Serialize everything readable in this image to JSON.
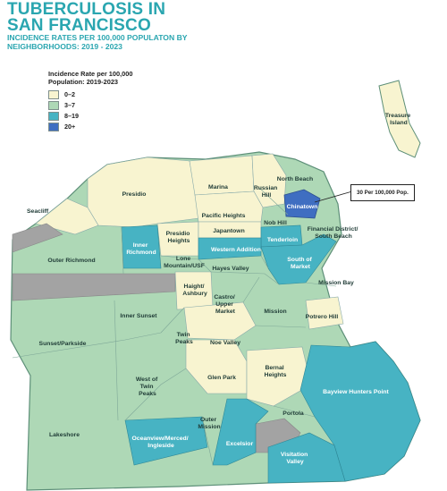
{
  "header": {
    "title_line1": "TUBERCULOSIS IN",
    "title_line2": "SAN FRANCISCO",
    "subtitle_line1": "INCIDENCE RATES PER 100,000 POPULATON BY",
    "subtitle_line2": "NEIGHBORHOODS: 2019 - 2023"
  },
  "legend": {
    "title_line1": "Incidence Rate per 100,000",
    "title_line2": "Population: 2019-2023",
    "items": [
      {
        "label": "0–2",
        "color": "#f8f4d0"
      },
      {
        "label": "3–7",
        "color": "#aed8b6"
      },
      {
        "label": "8–19",
        "color": "#47b3c3"
      },
      {
        "label": "20+",
        "color": "#3f6ec1"
      }
    ],
    "no_data_color": "#a3a3a3"
  },
  "callout": {
    "text": "30 Per 100,000 Pop."
  },
  "neighborhoods": {
    "treasure_island": {
      "l1": "Treasure",
      "l2": "Island",
      "band": "0–2"
    },
    "north_beach": {
      "l1": "North Beach",
      "band": "3–7"
    },
    "russian_hill": {
      "l1": "Russian",
      "l2": "Hill",
      "band": "0–2"
    },
    "marina": {
      "l1": "Marina",
      "band": "0–2"
    },
    "presidio": {
      "l1": "Presidio",
      "band": "0–2"
    },
    "chinatown": {
      "l1": "Chinatown",
      "band": "20+"
    },
    "pacific_heights": {
      "l1": "Pacific Heights",
      "band": "0–2"
    },
    "nob_hill": {
      "l1": "Nob Hill",
      "band": "3–7"
    },
    "seacliff": {
      "l1": "Seacliff",
      "band": "0–2"
    },
    "financial_district": {
      "l1": "Financial District/",
      "l2": "South Beach",
      "band": "3–7"
    },
    "presidio_heights": {
      "l1": "Presidio",
      "l2": "Heights",
      "band": "0–2"
    },
    "japantown": {
      "l1": "Japantown",
      "band": "0–2"
    },
    "tenderloin": {
      "l1": "Tenderloin",
      "band": "8–19"
    },
    "inner_richmond": {
      "l1": "Inner",
      "l2": "Richmond",
      "band": "8–19"
    },
    "western_addition": {
      "l1": "Western Addition",
      "band": "8–19"
    },
    "south_of_market": {
      "l1": "South of",
      "l2": "Market",
      "band": "8–19"
    },
    "outer_richmond": {
      "l1": "Outer Richmond",
      "band": "3–7"
    },
    "lone_mountain": {
      "l1": "Lone",
      "l2": "Mountain/USF",
      "band": "3–7"
    },
    "hayes_valley": {
      "l1": "Hayes Valley",
      "band": "3–7"
    },
    "mission_bay": {
      "l1": "Mission Bay",
      "band": "3–7"
    },
    "haight_ashbury": {
      "l1": "Haight/",
      "l2": "Ashbury",
      "band": "0–2"
    },
    "castro": {
      "l1": "Castro/",
      "l2": "Upper",
      "l3": "Market",
      "band": "3–7"
    },
    "inner_sunset": {
      "l1": "Inner Sunset",
      "band": "3–7"
    },
    "mission": {
      "l1": "Mission",
      "band": "3–7"
    },
    "potrero_hill": {
      "l1": "Potrero Hill",
      "band": "0–2"
    },
    "sunset_parkside": {
      "l1": "Sunset/Parkside",
      "band": "3–7"
    },
    "twin_peaks": {
      "l1": "Twin",
      "l2": "Peaks",
      "band": "3–7"
    },
    "noe_valley": {
      "l1": "Noe Valley",
      "band": "0–2"
    },
    "bernal_heights": {
      "l1": "Bernal",
      "l2": "Heights",
      "band": "0–2"
    },
    "west_of_twin_peaks": {
      "l1": "West of",
      "l2": "Twin",
      "l3": "Peaks",
      "band": "3–7"
    },
    "glen_park": {
      "l1": "Glen Park",
      "band": "0–2"
    },
    "bayview": {
      "l1": "Bayview Hunters Point",
      "band": "8–19"
    },
    "portola": {
      "l1": "Portola",
      "band": "3–7"
    },
    "lakeshore": {
      "l1": "Lakeshore",
      "band": "3–7"
    },
    "outer_mission": {
      "l1": "Outer",
      "l2": "Mission",
      "band": "3–7"
    },
    "oceanview": {
      "l1": "Oceanview/Merced/",
      "l2": "Ingleside",
      "band": "8–19"
    },
    "excelsior": {
      "l1": "Excelsior",
      "band": "8–19"
    },
    "visitacion_valley": {
      "l1": "Visitation",
      "l2": "Valley",
      "band": "8–19"
    }
  }
}
